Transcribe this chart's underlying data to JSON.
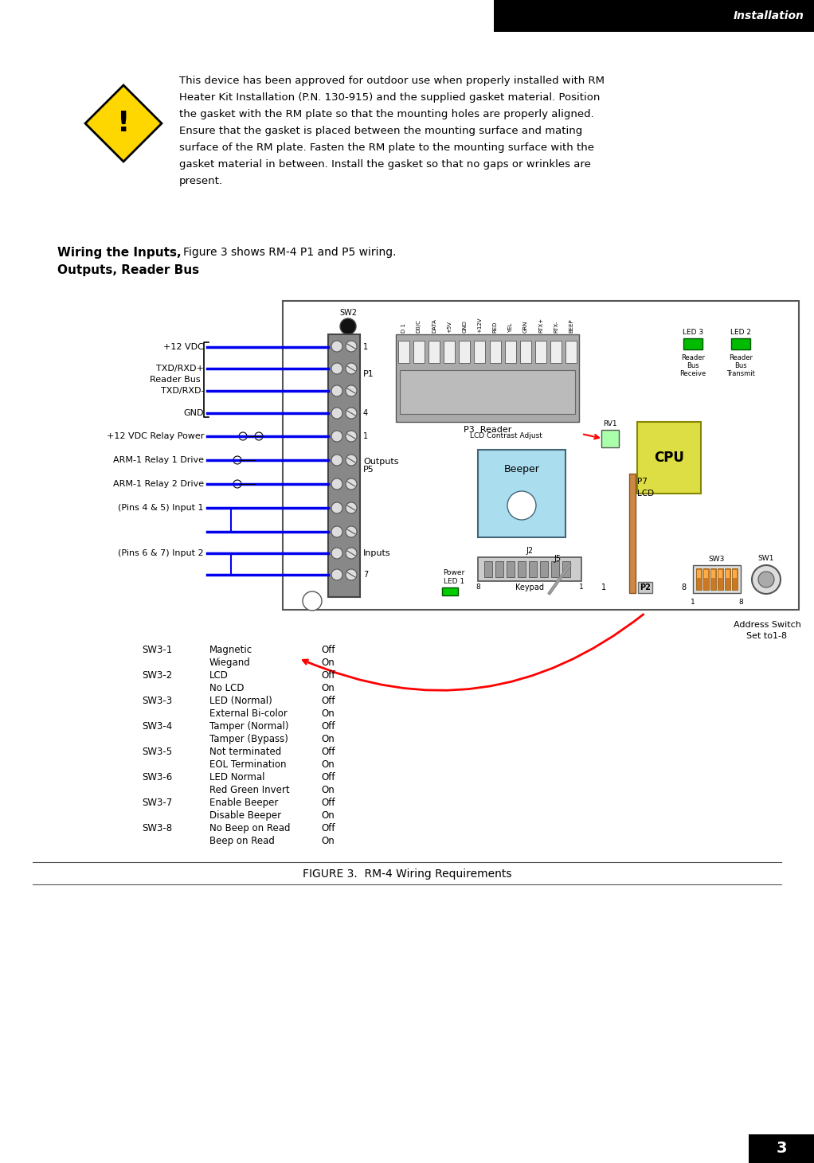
{
  "header_text": "Installation",
  "header_bg": "#000000",
  "header_text_color": "#ffffff",
  "warning_text_lines": [
    "This device has been approved for outdoor use when properly installed with RM",
    "Heater Kit Installation (P.N. 130-915) and the supplied gasket material. Position",
    "the gasket with the RM plate so that the mounting holes are properly aligned.",
    "Ensure that the gasket is placed between the mounting surface and mating",
    "surface of the RM plate. Fasten the RM plate to the mounting surface with the",
    "gasket material in between. Install the gasket so that no gaps or wrinkles are",
    "present."
  ],
  "section_heading_line1": "Wiring the Inputs,",
  "section_heading_line2": "Outputs, Reader Bus",
  "section_text": "Figure 3 shows RM-4 P1 and P5 wiring.",
  "figure_caption": "FIGURE 3.  RM-4 Wiring Requirements",
  "page_number": "3",
  "bg_color": "#ffffff",
  "body_text_color": "#000000",
  "heading_color": "#000000",
  "diamond_color": "#FFD700",
  "diamond_border": "#000000",
  "wire_color": "#0000ee",
  "sw_table": [
    [
      "SW3-1",
      "Magnetic",
      "Off"
    ],
    [
      "",
      "Wiegand",
      "On"
    ],
    [
      "SW3-2",
      "LCD",
      "Off"
    ],
    [
      "",
      "No LCD",
      "On"
    ],
    [
      "SW3-3",
      "LED (Normal)",
      "Off"
    ],
    [
      "",
      "External Bi-color",
      "On"
    ],
    [
      "SW3-4",
      "Tamper (Normal)",
      "Off"
    ],
    [
      "",
      "Tamper (Bypass)",
      "On"
    ],
    [
      "SW3-5",
      "Not terminated",
      "Off"
    ],
    [
      "",
      "EOL Termination",
      "On"
    ],
    [
      "SW3-6",
      "LED Normal",
      "Off"
    ],
    [
      "",
      "Red Green Invert",
      "On"
    ],
    [
      "SW3-7",
      "Enable Beeper",
      "Off"
    ],
    [
      "",
      "Disable Beeper",
      "On"
    ],
    [
      "SW3-8",
      "No Beep on Read",
      "Off"
    ],
    [
      "",
      "Beep on Read",
      "On"
    ]
  ],
  "p3_labels": [
    "D 1",
    "D0/C",
    "DATA",
    "+5V",
    "GND",
    "+12V",
    "RED",
    "YEL",
    "GRN",
    "RTX+",
    "RTX-",
    "BEEP"
  ]
}
